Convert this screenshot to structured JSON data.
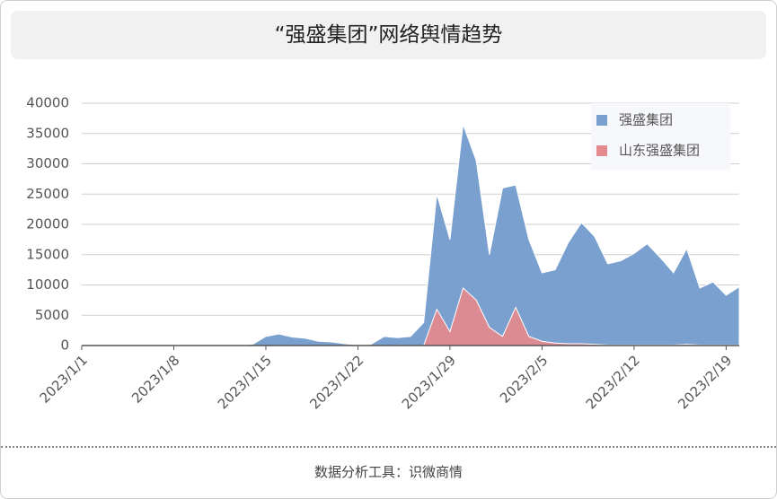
{
  "chart_data": {
    "type": "area",
    "title": "“强盛集团”网络舆情趋势",
    "footer": "数据分析工具：识微商情",
    "categories": [
      "2023/1/1",
      null,
      null,
      null,
      null,
      null,
      null,
      "2023/1/8",
      null,
      null,
      null,
      null,
      null,
      null,
      "2023/1/15",
      null,
      null,
      null,
      null,
      null,
      null,
      "2023/1/22",
      null,
      null,
      null,
      null,
      null,
      null,
      "2023/1/29",
      null,
      null,
      null,
      null,
      null,
      null,
      "2023/2/5",
      null,
      null,
      null,
      null,
      null,
      null,
      "2023/2/12",
      null,
      null,
      null,
      null,
      null,
      null,
      "2023/2/19",
      null
    ],
    "series": [
      {
        "name": "强盛集团",
        "color": "#7aa0cf",
        "values": [
          0,
          0,
          0,
          0,
          0,
          0,
          0,
          0,
          0,
          0,
          0,
          0,
          100,
          200,
          1500,
          1900,
          1400,
          1200,
          700,
          600,
          300,
          100,
          200,
          1500,
          1300,
          1500,
          3800,
          25000,
          17500,
          36500,
          30500,
          15000,
          26000,
          26500,
          17500,
          12000,
          12500,
          17000,
          20300,
          18000,
          13500,
          14000,
          15200,
          16800,
          14500,
          12000,
          16000,
          9500,
          10500,
          8300,
          9700
        ]
      },
      {
        "name": "山东强盛集团",
        "color": "#e38a8f",
        "values": [
          0,
          0,
          0,
          0,
          0,
          0,
          0,
          0,
          0,
          0,
          0,
          0,
          0,
          0,
          0,
          0,
          0,
          0,
          0,
          0,
          0,
          0,
          0,
          0,
          0,
          0,
          0,
          6000,
          2300,
          9500,
          7500,
          3000,
          1500,
          6300,
          1500,
          700,
          400,
          300,
          300,
          200,
          100,
          100,
          100,
          100,
          100,
          100,
          200,
          100,
          100,
          100,
          100
        ]
      }
    ],
    "ylim": [
      0,
      40000
    ],
    "yticks": [
      0,
      5000,
      10000,
      15000,
      20000,
      25000,
      30000,
      35000,
      40000
    ],
    "grid": true,
    "legend": "top-right"
  }
}
